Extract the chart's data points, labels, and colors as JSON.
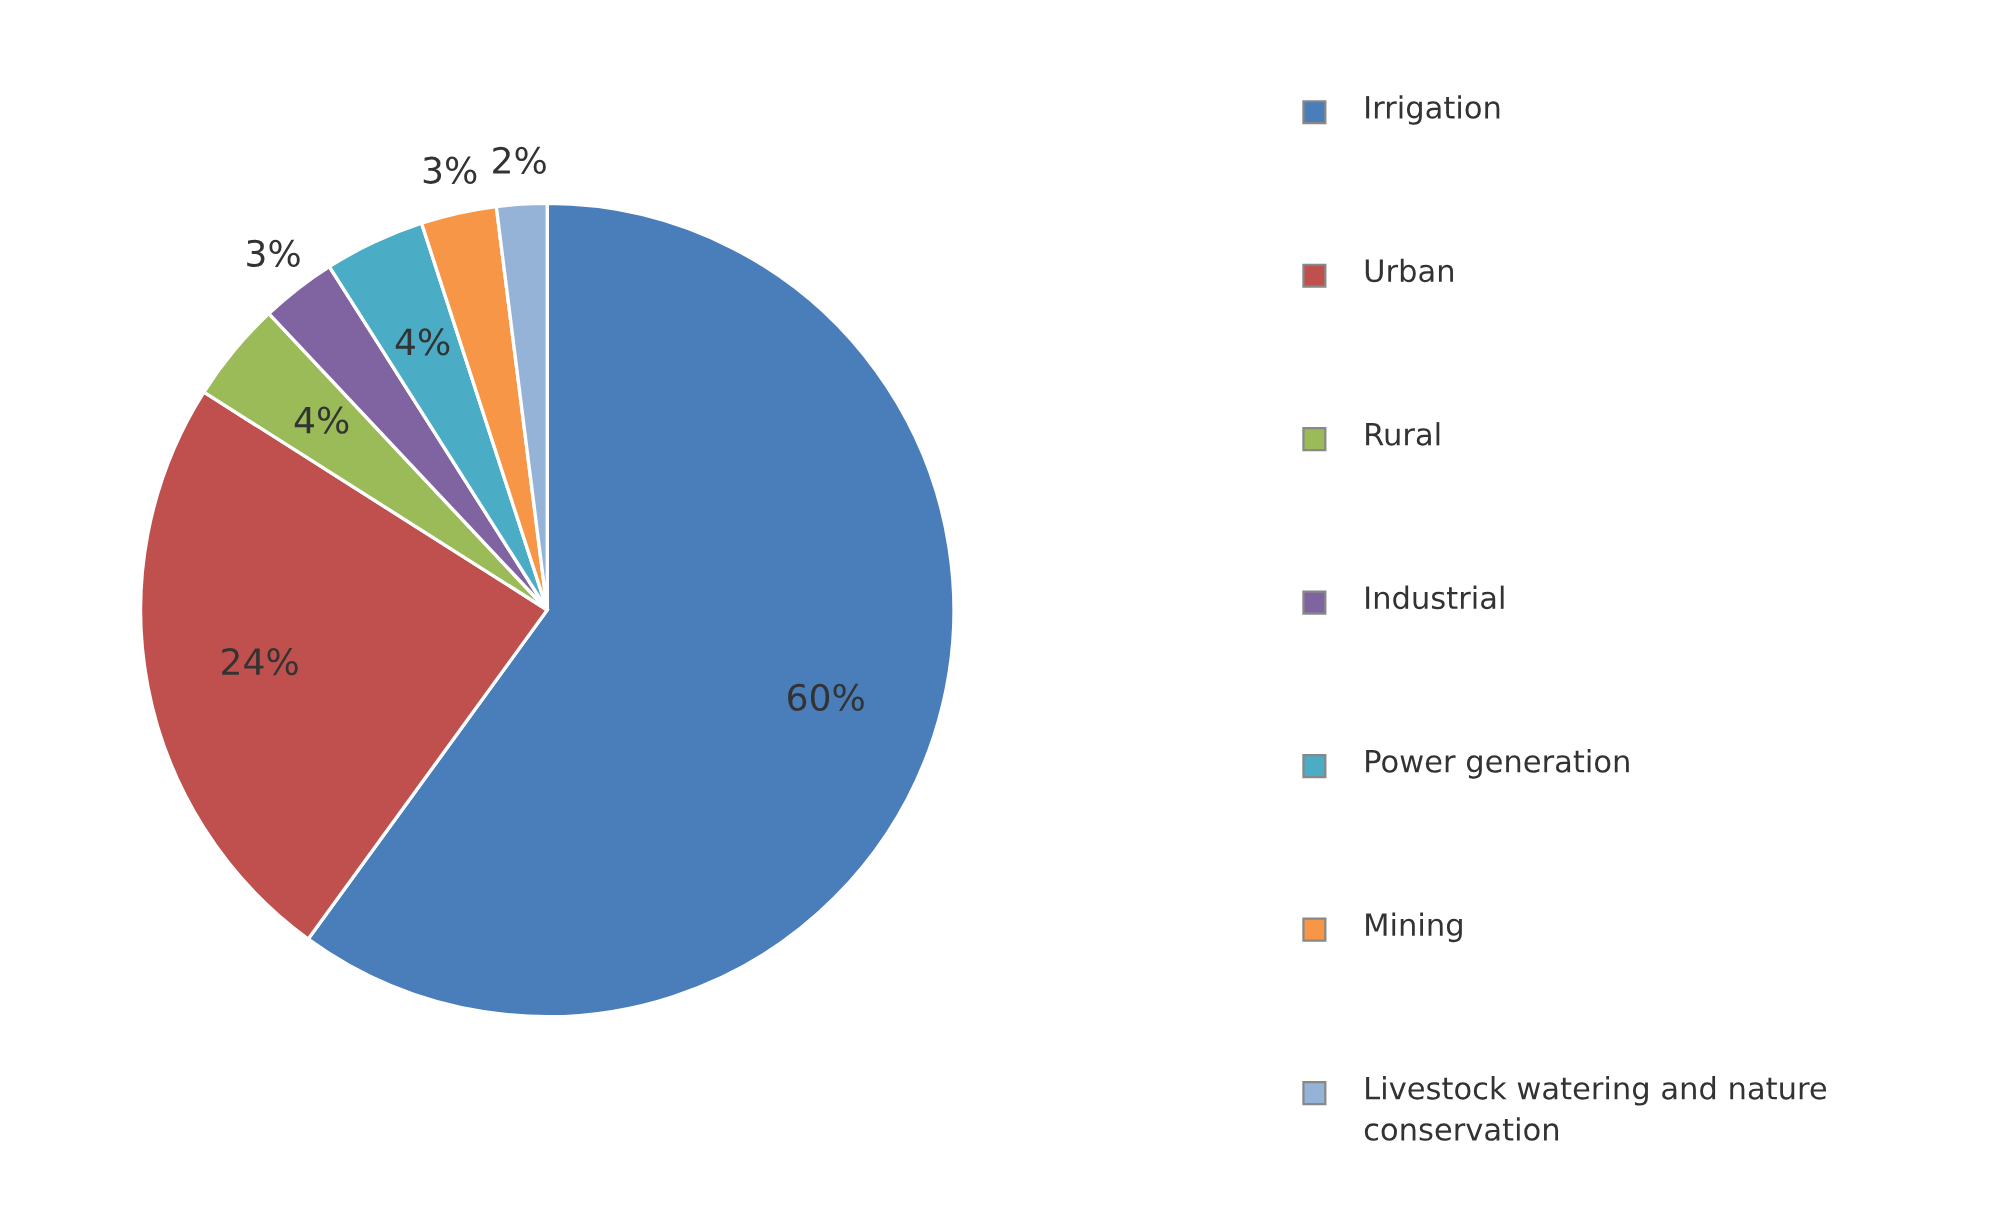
{
  "chart_data": {
    "type": "pie",
    "categories": [
      "Irrigation",
      "Urban",
      "Rural",
      "Industrial",
      "Power generation",
      "Mining",
      "Livestock watering and nature conservation"
    ],
    "values": [
      60,
      24,
      4,
      3,
      4,
      3,
      2
    ],
    "colors": [
      "#4a7ebb",
      "#c0504d",
      "#9bbb59",
      "#8064a2",
      "#4bacc6",
      "#f79646",
      "#95b3d7"
    ],
    "value_labels": [
      "60%",
      "24%",
      "4%",
      "3%",
      "4%",
      "3%",
      "2%"
    ],
    "legend": "right"
  }
}
